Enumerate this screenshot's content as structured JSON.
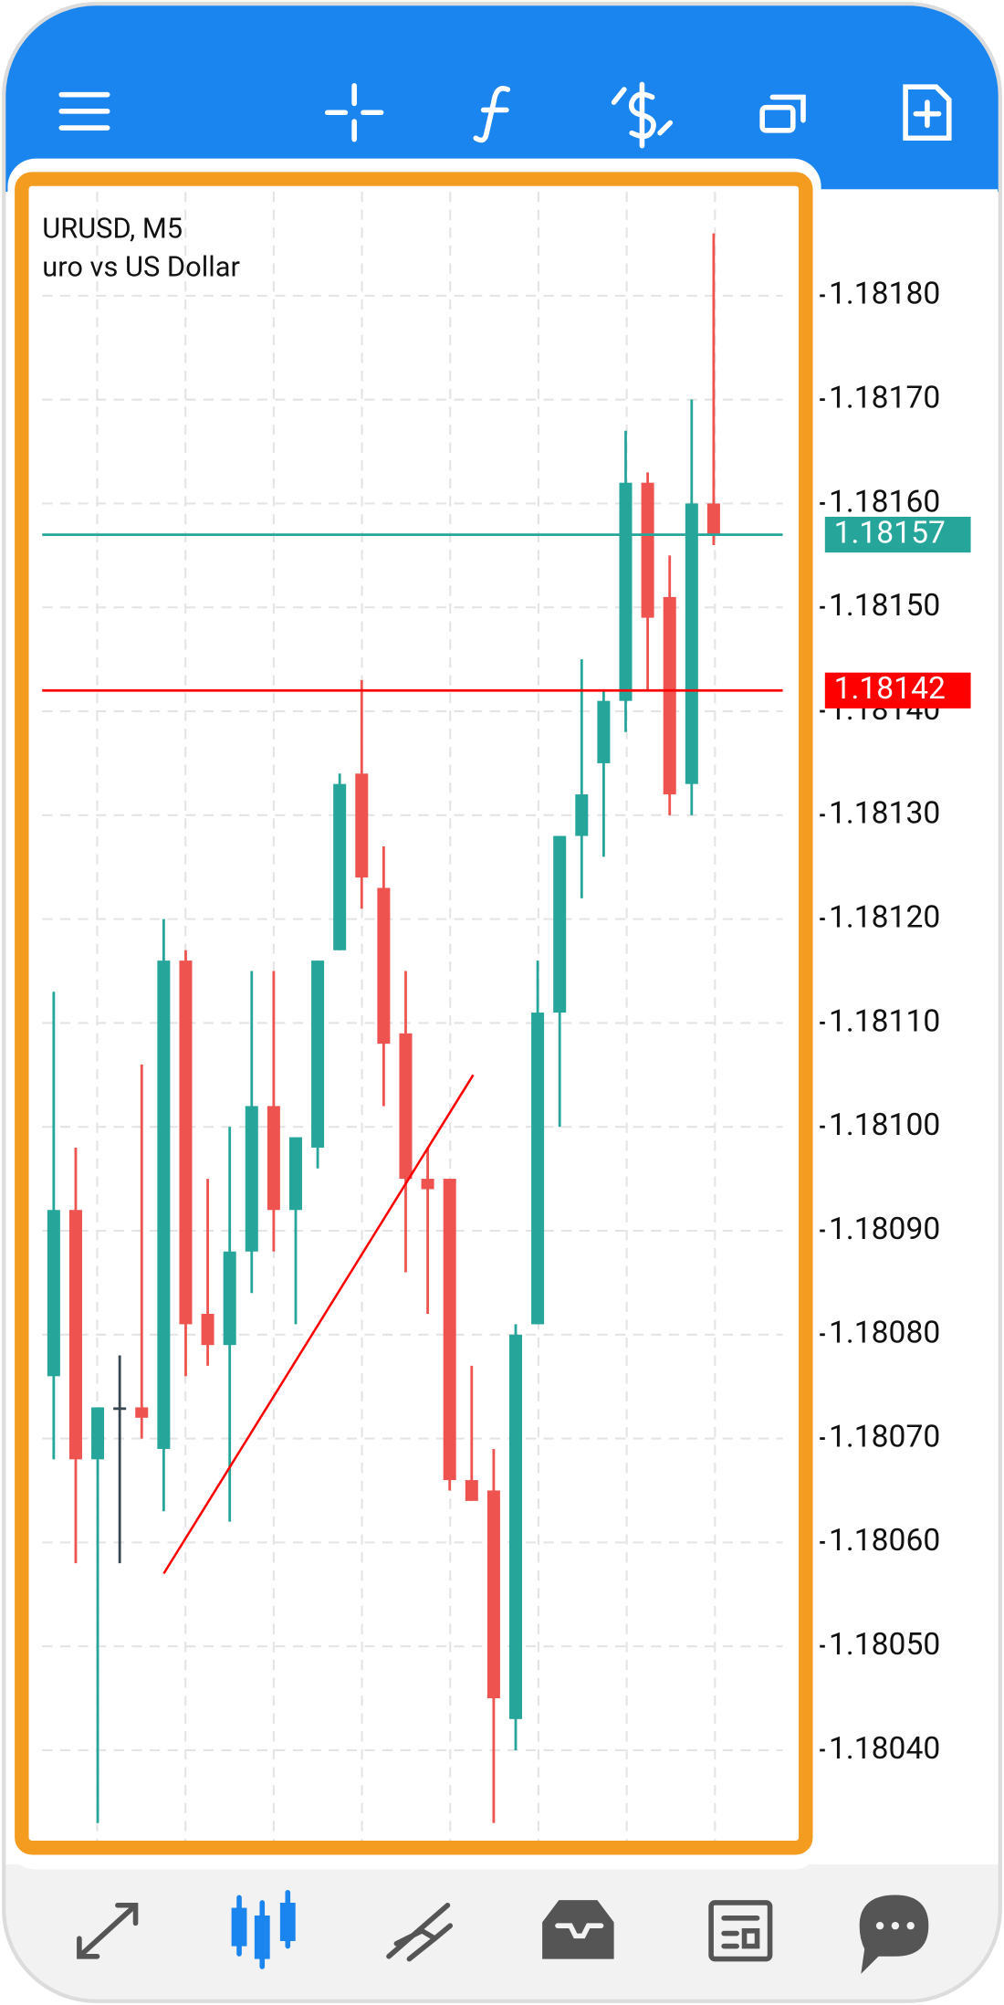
{
  "chart_data": {
    "type": "candlestick",
    "title": "URUSD, M5",
    "subtitle": "uro vs US Dollar",
    "ylim": [
      1.1803,
      1.1819
    ],
    "yticks": [
      {
        "value": 1.1818,
        "label": "1.18180"
      },
      {
        "value": 1.1817,
        "label": "1.18170"
      },
      {
        "value": 1.1816,
        "label": "1.18160"
      },
      {
        "value": 1.1815,
        "label": "1.18150"
      },
      {
        "value": 1.1814,
        "label": "1.18140"
      },
      {
        "value": 1.1813,
        "label": "1.18130"
      },
      {
        "value": 1.1812,
        "label": "1.18120"
      },
      {
        "value": 1.1811,
        "label": "1.18110"
      },
      {
        "value": 1.181,
        "label": "1.18100"
      },
      {
        "value": 1.1809,
        "label": "1.18090"
      },
      {
        "value": 1.1808,
        "label": "1.18080"
      },
      {
        "value": 1.1807,
        "label": "1.18070"
      },
      {
        "value": 1.1806,
        "label": "1.18060"
      },
      {
        "value": 1.1805,
        "label": "1.18050"
      },
      {
        "value": 1.1804,
        "label": "1.18040"
      }
    ],
    "grid": true,
    "up_color": "#26a69a",
    "down_color": "#ef5350",
    "doji_color": "#37474f",
    "candles": {
      "open": [
        1.18076,
        1.18092,
        1.18068,
        1.18073,
        1.18073,
        1.18069,
        1.18116,
        1.18082,
        1.18079,
        1.18088,
        1.18102,
        1.18092,
        1.18098,
        1.18117,
        1.18134,
        1.18123,
        1.18109,
        1.18095,
        1.18095,
        1.18066,
        1.18065,
        1.18043,
        1.18081,
        1.18111,
        1.18128,
        1.18135,
        1.18141,
        1.18162,
        1.18151,
        1.18133,
        1.1816
      ],
      "high": [
        1.18113,
        1.18098,
        1.18073,
        1.18078,
        1.18106,
        1.1812,
        1.18117,
        1.18095,
        1.181,
        1.18115,
        1.18115,
        1.18099,
        1.18116,
        1.18134,
        1.18143,
        1.18127,
        1.18115,
        1.18098,
        1.18095,
        1.18077,
        1.18069,
        1.18081,
        1.18116,
        1.18128,
        1.18145,
        1.18142,
        1.18167,
        1.18163,
        1.18155,
        1.1817,
        1.18186
      ],
      "low": [
        1.18068,
        1.18058,
        1.18033,
        1.18058,
        1.1807,
        1.18063,
        1.18076,
        1.18077,
        1.18062,
        1.18084,
        1.18088,
        1.18081,
        1.18096,
        1.18117,
        1.18121,
        1.18102,
        1.18086,
        1.18082,
        1.18065,
        1.18064,
        1.18033,
        1.1804,
        1.18081,
        1.181,
        1.18122,
        1.18126,
        1.18138,
        1.18142,
        1.1813,
        1.1813,
        1.18156
      ],
      "close": [
        1.18092,
        1.18068,
        1.18073,
        1.18073,
        1.18072,
        1.18116,
        1.18081,
        1.18079,
        1.18088,
        1.18102,
        1.18092,
        1.18099,
        1.18116,
        1.18133,
        1.18124,
        1.18108,
        1.18095,
        1.18094,
        1.18066,
        1.18064,
        1.18045,
        1.1808,
        1.18111,
        1.18128,
        1.18132,
        1.18141,
        1.18162,
        1.18149,
        1.18132,
        1.1816,
        1.18157
      ]
    },
    "price_lines": [
      {
        "value": 1.18157,
        "label": "1.18157",
        "color": "#26a69a"
      },
      {
        "value": 1.18142,
        "label": "1.18142",
        "color": "#ff0000"
      }
    ],
    "trendline": {
      "color": "#ff0000",
      "values": [
        1.18057,
        1.18105
      ]
    }
  }
}
